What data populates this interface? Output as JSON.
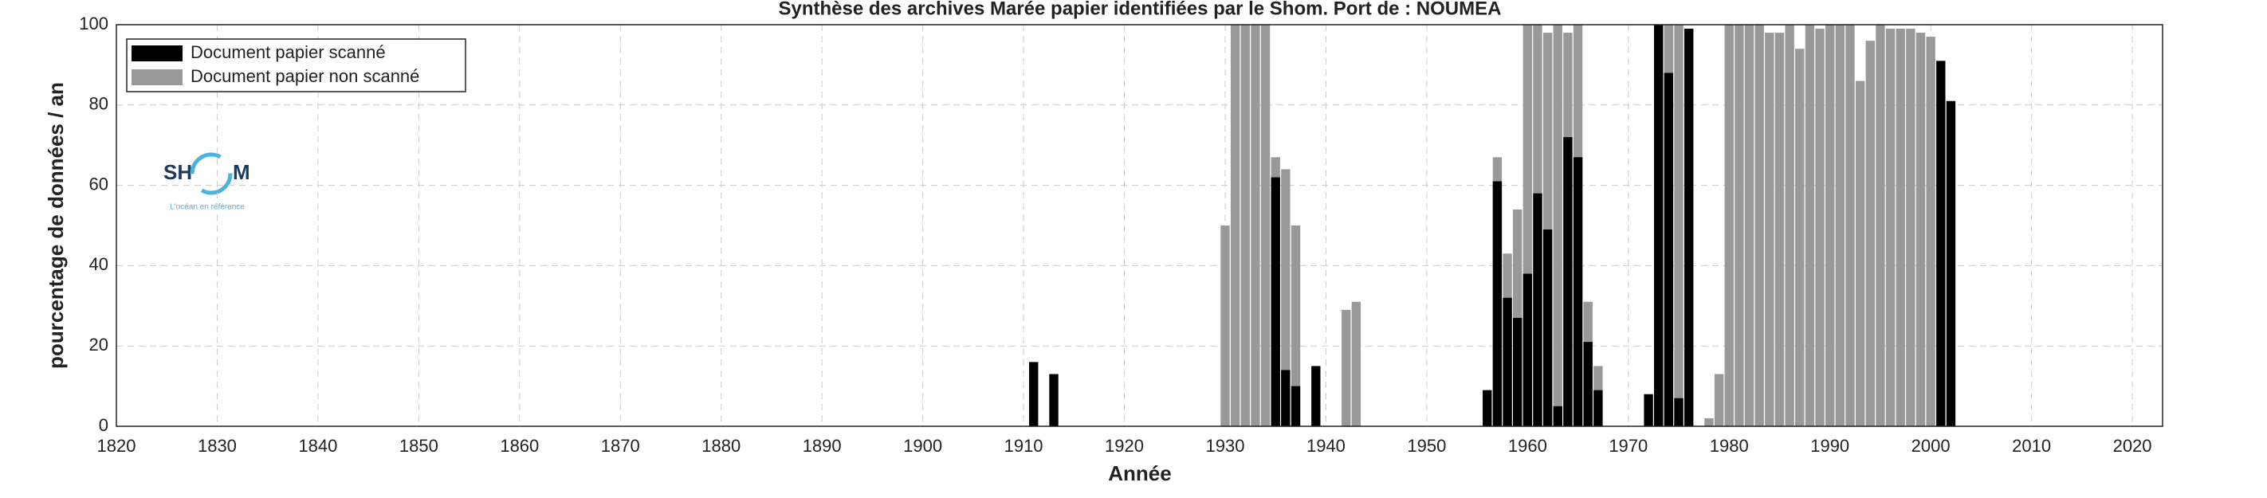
{
  "chart_data": {
    "type": "bar",
    "title": "Synthèse des archives Marée papier identifiées par le Shom. Port de : NOUMEA",
    "x_label": "Année",
    "y_label": "pourcentage de données / an",
    "x": [
      1911,
      1913,
      1930,
      1931,
      1932,
      1933,
      1934,
      1935,
      1936,
      1937,
      1939,
      1942,
      1943,
      1956,
      1957,
      1958,
      1959,
      1960,
      1961,
      1962,
      1963,
      1964,
      1965,
      1966,
      1967,
      1972,
      1973,
      1974,
      1975,
      1976,
      1978,
      1979,
      1980,
      1981,
      1982,
      1983,
      1984,
      1985,
      1986,
      1987,
      1988,
      1989,
      1990,
      1991,
      1992,
      1993,
      1994,
      1995,
      1996,
      1997,
      1998,
      1999,
      2000,
      2001,
      2002
    ],
    "series": [
      {
        "name": "Document papier non scanné",
        "color": "#999999",
        "values": [
          null,
          null,
          50,
          100,
          100,
          100,
          100,
          67,
          64,
          50,
          null,
          29,
          31,
          null,
          67,
          43,
          54,
          100,
          100,
          98,
          100,
          98,
          100,
          31,
          15,
          null,
          100,
          100,
          100,
          99,
          2,
          13,
          100,
          100,
          100,
          100,
          98,
          98,
          100,
          94,
          100,
          99,
          100,
          100,
          100,
          86,
          96,
          100,
          99,
          99,
          99,
          98,
          97,
          null,
          null
        ]
      },
      {
        "name": "Document papier scanné",
        "color": "#000000",
        "values": [
          16,
          13,
          null,
          null,
          null,
          null,
          null,
          62,
          14,
          10,
          15,
          null,
          null,
          9,
          61,
          32,
          27,
          38,
          58,
          49,
          5,
          72,
          67,
          21,
          9,
          8,
          100,
          88,
          7,
          99,
          null,
          null,
          null,
          null,
          null,
          null,
          null,
          null,
          null,
          null,
          null,
          null,
          null,
          null,
          null,
          null,
          null,
          null,
          null,
          null,
          null,
          null,
          null,
          91,
          81
        ]
      }
    ],
    "xlim": [
      1820,
      2023
    ],
    "xticks": [
      1820,
      1830,
      1840,
      1850,
      1860,
      1870,
      1880,
      1890,
      1900,
      1910,
      1920,
      1930,
      1940,
      1950,
      1960,
      1970,
      1980,
      1990,
      2000,
      2010,
      2020
    ],
    "ylim": [
      0,
      100
    ],
    "yticks": [
      0,
      20,
      40,
      60,
      80,
      100
    ],
    "grid": true,
    "legend": "upper-left"
  },
  "logo": {
    "left": "SH",
    "right": "M",
    "tagline": "L'océan en référence"
  }
}
